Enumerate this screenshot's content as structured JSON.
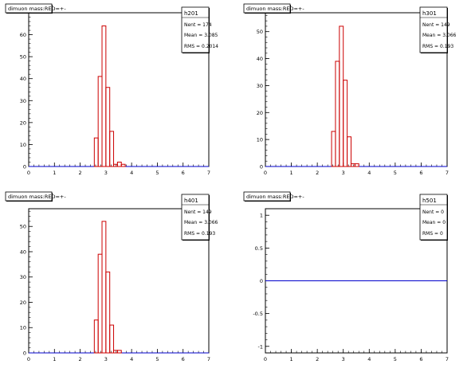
{
  "colors": {
    "histogram": "#cc0000",
    "baseline": "#0000cc",
    "axis": "#000000",
    "background": "#ffffff"
  },
  "chart_data": [
    {
      "type": "bar",
      "title": "dimuon mass:RED=+-",
      "stats": {
        "name": "h201",
        "entries_label": "Nent = 174",
        "mean_label": "Mean = 3.085",
        "rms_label": "RMS = 0.2014"
      },
      "xlim": [
        0,
        7
      ],
      "ylim": [
        0,
        70
      ],
      "x_ticks": [
        "0",
        "1",
        "2",
        "3",
        "4",
        "5",
        "6",
        "7"
      ],
      "y_ticks": [
        {
          "v": 0,
          "label": "0"
        },
        {
          "v": 10,
          "label": "10"
        },
        {
          "v": 20,
          "label": "20"
        },
        {
          "v": 30,
          "label": "30"
        },
        {
          "v": 40,
          "label": "40"
        },
        {
          "v": 50,
          "label": "50"
        },
        {
          "v": 60,
          "label": "60"
        }
      ],
      "bin_width": 0.15,
      "bins": [
        {
          "x": 2.55,
          "value": 13
        },
        {
          "x": 2.7,
          "value": 41
        },
        {
          "x": 2.85,
          "value": 64
        },
        {
          "x": 3.0,
          "value": 36
        },
        {
          "x": 3.15,
          "value": 16
        },
        {
          "x": 3.3,
          "value": 1
        },
        {
          "x": 3.45,
          "value": 2
        },
        {
          "x": 3.6,
          "value": 1
        }
      ]
    },
    {
      "type": "bar",
      "title": "dimuon mass:RED=+-",
      "stats": {
        "name": "h301",
        "entries_label": "Nent = 149",
        "mean_label": "Mean = 3.066",
        "rms_label": "RMS = 0.193"
      },
      "xlim": [
        0,
        7
      ],
      "ylim": [
        0,
        57
      ],
      "x_ticks": [
        "0",
        "1",
        "2",
        "3",
        "4",
        "5",
        "6",
        "7"
      ],
      "y_ticks": [
        {
          "v": 0,
          "label": "0"
        },
        {
          "v": 10,
          "label": "10"
        },
        {
          "v": 20,
          "label": "20"
        },
        {
          "v": 30,
          "label": "30"
        },
        {
          "v": 40,
          "label": "40"
        },
        {
          "v": 50,
          "label": "50"
        }
      ],
      "bin_width": 0.15,
      "bins": [
        {
          "x": 2.55,
          "value": 13
        },
        {
          "x": 2.7,
          "value": 39
        },
        {
          "x": 2.85,
          "value": 52
        },
        {
          "x": 3.0,
          "value": 32
        },
        {
          "x": 3.15,
          "value": 11
        },
        {
          "x": 3.3,
          "value": 1
        },
        {
          "x": 3.45,
          "value": 1
        }
      ]
    },
    {
      "type": "bar",
      "title": "dimuon mass:RED=+-",
      "stats": {
        "name": "h401",
        "entries_label": "Nent = 149",
        "mean_label": "Mean = 3.066",
        "rms_label": "RMS = 0.193"
      },
      "xlim": [
        0,
        7
      ],
      "ylim": [
        0,
        57
      ],
      "x_ticks": [
        "0",
        "1",
        "2",
        "3",
        "4",
        "5",
        "6",
        "7"
      ],
      "y_ticks": [
        {
          "v": 0,
          "label": "0"
        },
        {
          "v": 10,
          "label": "10"
        },
        {
          "v": 20,
          "label": "20"
        },
        {
          "v": 30,
          "label": "30"
        },
        {
          "v": 40,
          "label": "40"
        },
        {
          "v": 50,
          "label": "50"
        }
      ],
      "bin_width": 0.15,
      "bins": [
        {
          "x": 2.55,
          "value": 13
        },
        {
          "x": 2.7,
          "value": 39
        },
        {
          "x": 2.85,
          "value": 52
        },
        {
          "x": 3.0,
          "value": 32
        },
        {
          "x": 3.15,
          "value": 11
        },
        {
          "x": 3.3,
          "value": 1
        },
        {
          "x": 3.45,
          "value": 1
        }
      ]
    },
    {
      "type": "bar",
      "title": "dimuon mass:RED=+-",
      "stats": {
        "name": "h501",
        "entries_label": "Nent = 0",
        "mean_label": "Mean = 0",
        "rms_label": "RMS = 0"
      },
      "xlim": [
        0,
        7
      ],
      "ylim": [
        -1.1,
        1.1
      ],
      "x_ticks": [
        "0",
        "1",
        "2",
        "3",
        "4",
        "5",
        "6",
        "7"
      ],
      "y_ticks": [
        {
          "v": -1,
          "label": "-1"
        },
        {
          "v": -0.5,
          "label": "-0.5"
        },
        {
          "v": 0,
          "label": "0"
        },
        {
          "v": 0.5,
          "label": "0.5"
        },
        {
          "v": 1,
          "label": "1"
        }
      ],
      "bin_width": 0.15,
      "bins": []
    }
  ]
}
